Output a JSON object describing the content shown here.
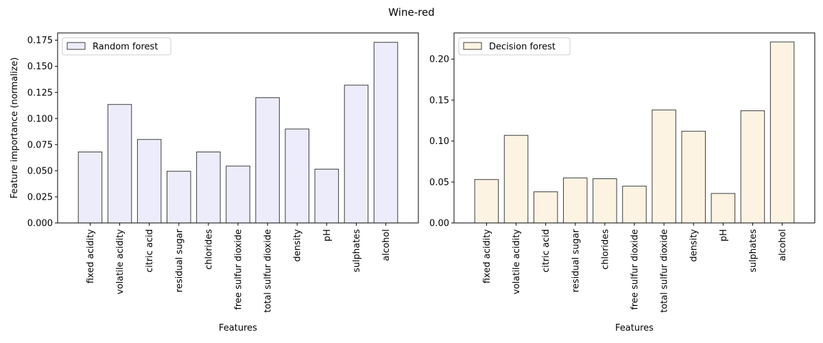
{
  "suptitle": "Wine-red",
  "chart_data": [
    {
      "type": "bar",
      "categories": [
        "fixed acidity",
        "volatile acidity",
        "citric acid",
        "residual sugar",
        "chlorides",
        "free sulfur dioxide",
        "total sulfur dioxide",
        "density",
        "pH",
        "sulphates",
        "alcohol"
      ],
      "series": [
        {
          "name": "Random forest",
          "values": [
            0.068,
            0.1135,
            0.08,
            0.0495,
            0.068,
            0.0545,
            0.12,
            0.09,
            0.0515,
            0.132,
            0.173
          ]
        }
      ],
      "title": "",
      "xlabel": "Features",
      "ylabel": "Feature importance (normalize)",
      "ylim": [
        0,
        0.182
      ],
      "yticks": [
        0.0,
        0.025,
        0.05,
        0.075,
        0.1,
        0.125,
        0.15,
        0.175
      ],
      "ytick_labels": [
        "0.000",
        "0.025",
        "0.050",
        "0.075",
        "0.100",
        "0.125",
        "0.150",
        "0.175"
      ],
      "bar_color": "#ececfa",
      "edge_color": "#3c3c3c",
      "legend": "top-left",
      "grid": false
    },
    {
      "type": "bar",
      "categories": [
        "fixed acidity",
        "volatile acidity",
        "citric acid",
        "residual sugar",
        "chlorides",
        "free sulfur dioxide",
        "total sulfur dioxide",
        "density",
        "pH",
        "sulphates",
        "alcohol"
      ],
      "series": [
        {
          "name": "Decision forest",
          "values": [
            0.053,
            0.107,
            0.038,
            0.055,
            0.054,
            0.045,
            0.138,
            0.112,
            0.036,
            0.137,
            0.221
          ]
        }
      ],
      "title": "",
      "xlabel": "Features",
      "ylabel": "",
      "ylim": [
        0,
        0.232
      ],
      "yticks": [
        0.0,
        0.05,
        0.1,
        0.15,
        0.2
      ],
      "ytick_labels": [
        "0.00",
        "0.05",
        "0.10",
        "0.15",
        "0.20"
      ],
      "bar_color": "#fdf3e2",
      "edge_color": "#3c3c3c",
      "legend": "top-left",
      "grid": false
    }
  ]
}
